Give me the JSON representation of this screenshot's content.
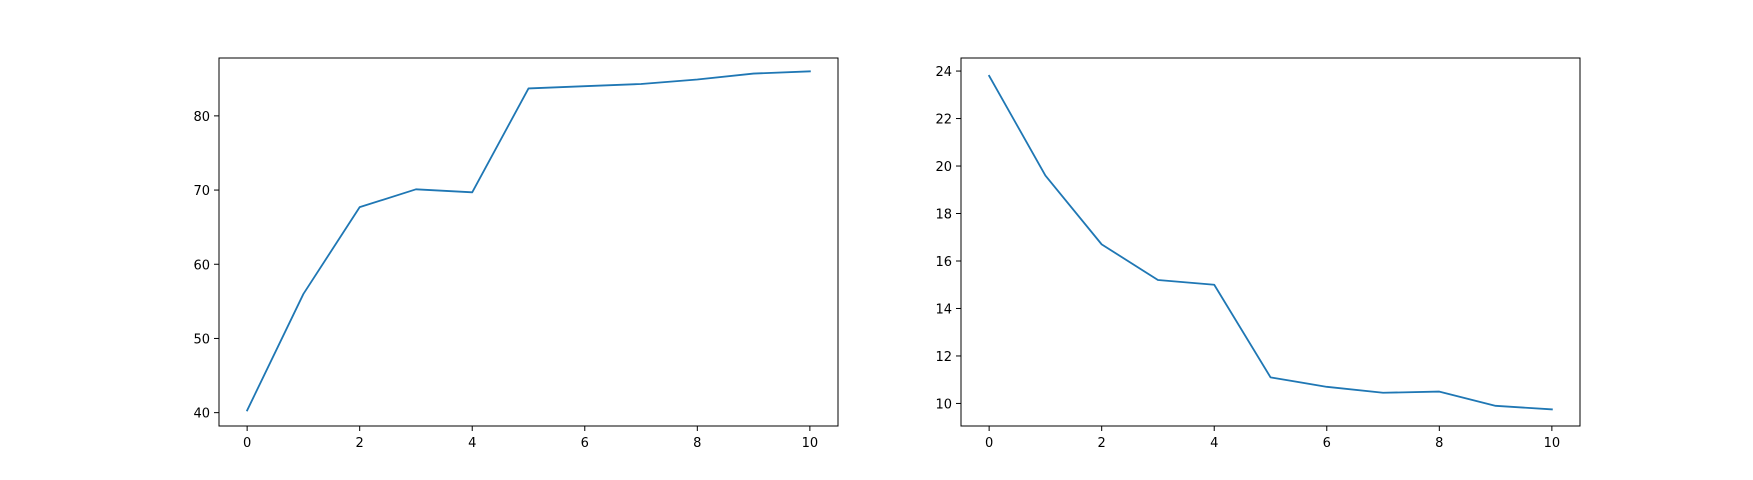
{
  "chart_data": [
    {
      "type": "line",
      "title": "",
      "xlabel": "",
      "ylabel": "",
      "xlim": [
        -0.5,
        10.5
      ],
      "ylim": [
        38.2,
        87.8
      ],
      "xticks": [
        0,
        2,
        4,
        6,
        8,
        10
      ],
      "yticks": [
        40,
        50,
        60,
        70,
        80
      ],
      "grid": false,
      "color": "#1f77b4",
      "series": [
        {
          "x": [
            0,
            1,
            2,
            3,
            4,
            5,
            6,
            7,
            8,
            9,
            10
          ],
          "y": [
            40.3,
            56.0,
            67.7,
            70.1,
            69.7,
            83.7,
            84.0,
            84.3,
            84.9,
            85.7,
            86.0
          ]
        }
      ]
    },
    {
      "type": "line",
      "title": "",
      "xlabel": "",
      "ylabel": "",
      "xlim": [
        -0.5,
        10.5
      ],
      "ylim": [
        9.05,
        24.55
      ],
      "xticks": [
        0,
        2,
        4,
        6,
        8,
        10
      ],
      "yticks": [
        10,
        12,
        14,
        16,
        18,
        20,
        22,
        24
      ],
      "grid": false,
      "color": "#1f77b4",
      "series": [
        {
          "x": [
            0,
            1,
            2,
            3,
            4,
            5,
            6,
            7,
            8,
            9,
            10
          ],
          "y": [
            23.8,
            19.6,
            16.7,
            15.2,
            15.0,
            11.1,
            10.7,
            10.45,
            10.5,
            9.9,
            9.75
          ]
        }
      ]
    }
  ]
}
